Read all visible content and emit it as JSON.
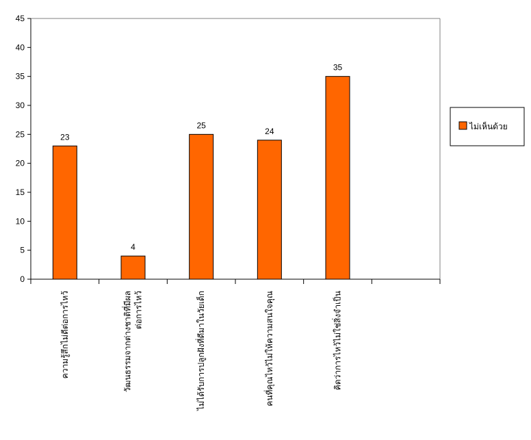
{
  "chart_data": {
    "type": "bar",
    "categories": [
      "ความรู้สึกไม่ดีต่อการไหว้",
      "วัฒนธรรมจากต่างชาติที่มีผลต่อการไหว้",
      "ไม่ได้รับการปลูกฝังที่ดีมาในวัยเด็ก",
      "คนที่คุณไหว้ไม่ให้ความสนใจคุณ",
      "คิดว่าการไหว้ไม่ใช่สิ่งจำเป็น"
    ],
    "category_lines": [
      [
        "ความรู้สึกไม่ดีต่อการไหว้"
      ],
      [
        "วัฒนธรรมจากต่างชาติที่มีผล",
        "ต่อการไหว้"
      ],
      [
        "ไม่ได้รับการปลูกฝังที่ดีมาในวัยเด็ก"
      ],
      [
        "คนที่คุณไหว้ไม่ให้ความสนใจคุณ"
      ],
      [
        "คิดว่าการไหว้ไม่ใช่สิ่งจำเป็น"
      ]
    ],
    "series": [
      {
        "name": "ไม่เห็นด้วย",
        "values": [
          23,
          4,
          25,
          24,
          35
        ]
      }
    ],
    "ylim": [
      0,
      45
    ],
    "yticks": [
      0,
      5,
      10,
      15,
      20,
      25,
      30,
      35,
      40,
      45
    ],
    "data_labels": true,
    "legend_position": "right",
    "colors": {
      "bar": "#ff6600",
      "bar_stroke": "#000000",
      "axis": "#000000"
    }
  }
}
